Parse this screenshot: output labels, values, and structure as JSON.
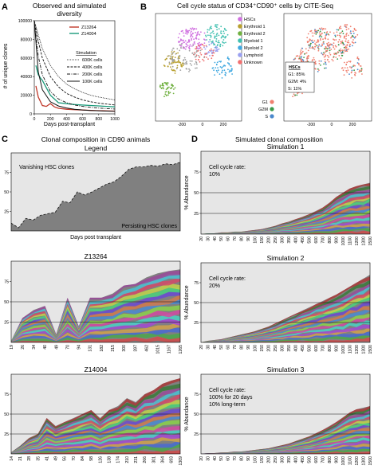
{
  "panel_letters": {
    "a": "A",
    "b": "B",
    "c": "C",
    "d": "D"
  },
  "colors": {
    "Z13264": "#c0392b",
    "Z14004": "#1a9a7a",
    "area_bg": "#808080",
    "stream_light": "#e6e6e6",
    "tsne_gray": "#a0a0a0",
    "G1": "#f08070",
    "G2M": "#3a9a4a",
    "S": "#4a88cc",
    "HSCs": "#d070e0",
    "Erythroid 1": "#b8a030",
    "Erythroid 2": "#70b040",
    "Myeloid 1": "#40c0b0",
    "Myeloid 2": "#40a8e0",
    "Lymphoid": "#9aa0f0",
    "Unknown": "#f07070"
  },
  "panelB": {
    "title": "Cell cycle status of CD34⁺CD90⁺ cells by CITE-Seq",
    "legend": [
      "HSCs",
      "Erythroid 1",
      "Erythroid 2",
      "Myeloid 1",
      "Myeloid 2",
      "Lymphoid",
      "Unknown"
    ],
    "cc_legend": [
      "G1",
      "G2M",
      "S"
    ],
    "hsc_box": {
      "heading": "HSCs",
      "g1": "G1: 85%",
      "g2m": "G2M: 4%",
      "s": "S: 11%"
    },
    "ticks": [
      "-200",
      "0",
      "200"
    ]
  },
  "chart_data": [
    {
      "id": "A",
      "type": "line",
      "title": "Observed and simulated diversity",
      "title_line1": "Observed and simulated",
      "title_line2": "diversity",
      "xlabel": "Days post-transplant",
      "ylabel": "# of unique clones",
      "xlim": [
        0,
        1000
      ],
      "ylim": [
        0,
        100000
      ],
      "xticks": [
        "0",
        "200",
        "400",
        "600",
        "800",
        "1000"
      ],
      "yticks": [
        "0",
        "20000",
        "40000",
        "60000",
        "80000",
        "100000"
      ],
      "legend_observed": [
        "Z13264",
        "Z14004"
      ],
      "legend_sim_heading": "Simulation",
      "series": [
        {
          "name": "Z13264",
          "x": [
            20,
            50,
            100,
            150,
            200,
            250,
            300,
            400,
            500,
            700,
            900,
            1000
          ],
          "y": [
            30000,
            18000,
            9000,
            8000,
            11000,
            7500,
            6000,
            5000,
            4500,
            3800,
            3200,
            3000
          ]
        },
        {
          "name": "Z14004",
          "x": [
            20,
            50,
            80,
            100,
            150,
            200,
            300,
            500,
            700,
            900,
            1000
          ],
          "y": [
            52000,
            42000,
            38000,
            36000,
            28000,
            20000,
            12000,
            10000,
            9000,
            8000,
            7500
          ]
        },
        {
          "name": "600K cells",
          "x": [
            0,
            50,
            100,
            200,
            300,
            400,
            500,
            600,
            700,
            800,
            900,
            1000
          ],
          "y": [
            100000,
            85000,
            70000,
            52000,
            40000,
            32000,
            27000,
            23000,
            20000,
            18000,
            16500,
            15000
          ]
        },
        {
          "name": "400K cells",
          "x": [
            0,
            50,
            100,
            200,
            300,
            400,
            500,
            600,
            700,
            800,
            900,
            1000
          ],
          "y": [
            100000,
            78000,
            60000,
            40000,
            29000,
            22000,
            18000,
            15000,
            13000,
            11500,
            10500,
            9500
          ]
        },
        {
          "name": "200K cells",
          "x": [
            0,
            50,
            100,
            200,
            300,
            400,
            500,
            600,
            700,
            800,
            900,
            1000
          ],
          "y": [
            100000,
            62000,
            42000,
            24000,
            16000,
            12000,
            9500,
            8000,
            7000,
            6200,
            5600,
            5200
          ]
        },
        {
          "name": "100K cells",
          "x": [
            0,
            50,
            100,
            200,
            300,
            400,
            500,
            600,
            700,
            800,
            900,
            1000
          ],
          "y": [
            100000,
            45000,
            26000,
            13000,
            8500,
            6300,
            5000,
            4200,
            3700,
            3300,
            3000,
            2800
          ]
        }
      ]
    },
    {
      "id": "C-legend",
      "type": "area",
      "heading": "Clonal composition in CD90 animals",
      "title": "Legend",
      "xlabel": "Days post transplant",
      "ylabel": "% Abundance",
      "ylim": [
        0,
        100
      ],
      "yticks": [
        "25",
        "50",
        "75"
      ],
      "annotations": [
        "Vanishing HSC clones",
        "Persisting HSC clones"
      ],
      "x": [
        0,
        1,
        2,
        3,
        4,
        5,
        6,
        7,
        8,
        9,
        10,
        11,
        12,
        13,
        14,
        15,
        16,
        17,
        18,
        19,
        20,
        21,
        22,
        23
      ],
      "boundary": [
        10,
        4,
        16,
        14,
        20,
        22,
        24,
        38,
        36,
        50,
        46,
        50,
        55,
        60,
        63,
        70,
        79,
        82,
        82,
        84,
        83,
        86,
        85,
        88
      ]
    },
    {
      "id": "C-Z13264",
      "type": "area",
      "title": "Z13264",
      "ylabel": "% Abundance",
      "yticks": [
        "25",
        "50",
        "75"
      ],
      "ylim": [
        0,
        100
      ],
      "categories": [
        "19",
        "26",
        "34",
        "40",
        "49",
        "70",
        "94",
        "131",
        "182",
        "215",
        "300",
        "397",
        "462",
        "1015",
        "1167",
        "1265"
      ],
      "boundary": [
        2,
        30,
        40,
        45,
        10,
        55,
        20,
        55,
        55,
        60,
        70,
        72,
        80,
        85,
        88,
        90
      ],
      "lines": [
        25,
        50
      ]
    },
    {
      "id": "C-Z14004",
      "type": "area",
      "title": "Z14004",
      "ylabel": "% Abundance",
      "yticks": [
        "25",
        "50",
        "75"
      ],
      "ylim": [
        0,
        100
      ],
      "categories": [
        "14",
        "21",
        "28",
        "35",
        "41",
        "49",
        "56",
        "70",
        "84",
        "98",
        "126",
        "138",
        "174",
        "210",
        "231",
        "266",
        "301",
        "364",
        "693",
        "1309"
      ],
      "boundary": [
        2,
        10,
        20,
        25,
        45,
        35,
        40,
        45,
        50,
        55,
        45,
        55,
        60,
        70,
        65,
        75,
        80,
        88,
        92,
        95
      ],
      "lines": [
        25,
        50
      ]
    },
    {
      "id": "D-sim1",
      "heading": "Simulated clonal composition",
      "type": "area",
      "title": "Simulation 1",
      "annotation_line1": "Cell cycle rate:",
      "annotation_line2": "10%",
      "annotation_line3": "",
      "ylabel": "% Abundance",
      "yticks": [
        "25",
        "50",
        "75"
      ],
      "ylim": [
        0,
        100
      ],
      "categories": [
        "20",
        "30",
        "40",
        "50",
        "60",
        "70",
        "80",
        "90",
        "100",
        "150",
        "200",
        "250",
        "300",
        "350",
        "400",
        "450",
        "500",
        "600",
        "700",
        "800",
        "900",
        "1000",
        "1100",
        "1200",
        "1300",
        "1500"
      ],
      "boundary": [
        0,
        1,
        1,
        2,
        2,
        3,
        3,
        4,
        5,
        6,
        8,
        10,
        13,
        15,
        18,
        21,
        24,
        28,
        32,
        38,
        45,
        50,
        55,
        58,
        60,
        62
      ],
      "lines": [
        25,
        50
      ]
    },
    {
      "id": "D-sim2",
      "type": "area",
      "title": "Simulation 2",
      "annotation_line1": "Cell cycle rate:",
      "annotation_line2": "20%",
      "annotation_line3": "",
      "ylabel": "% Abundance",
      "yticks": [
        "25",
        "50",
        "75"
      ],
      "ylim": [
        0,
        100
      ],
      "categories": [
        "20",
        "30",
        "40",
        "50",
        "60",
        "70",
        "80",
        "90",
        "100",
        "150",
        "200",
        "250",
        "300",
        "350",
        "400",
        "450",
        "500",
        "600",
        "700",
        "800",
        "900",
        "1000",
        "1100",
        "1200",
        "1300",
        "1500"
      ],
      "boundary": [
        0,
        2,
        3,
        4,
        6,
        8,
        10,
        12,
        14,
        17,
        20,
        24,
        28,
        32,
        36,
        40,
        44,
        48,
        52,
        56,
        60,
        65,
        70,
        75,
        80,
        85
      ],
      "lines": [
        25,
        50
      ]
    },
    {
      "id": "D-sim3",
      "type": "area",
      "title": "Simulation 3",
      "annotation_line1": "Cell cycle rate:",
      "annotation_line2": "100% for 20 days",
      "annotation_line3": "10% long-term",
      "ylabel": "% Abundance",
      "yticks": [
        "25",
        "50",
        "75"
      ],
      "ylim": [
        0,
        100
      ],
      "categories": [
        "20",
        "30",
        "40",
        "50",
        "60",
        "70",
        "80",
        "90",
        "100",
        "150",
        "200",
        "250",
        "300",
        "350",
        "400",
        "450",
        "500",
        "600",
        "700",
        "800",
        "900",
        "1000",
        "1100",
        "1200",
        "1300",
        "1500"
      ],
      "boundary": [
        0,
        1,
        1,
        2,
        2,
        3,
        3,
        4,
        5,
        6,
        7,
        9,
        11,
        13,
        16,
        19,
        22,
        26,
        30,
        35,
        40,
        46,
        52,
        56,
        58,
        60
      ],
      "lines": [
        25,
        50
      ]
    }
  ]
}
